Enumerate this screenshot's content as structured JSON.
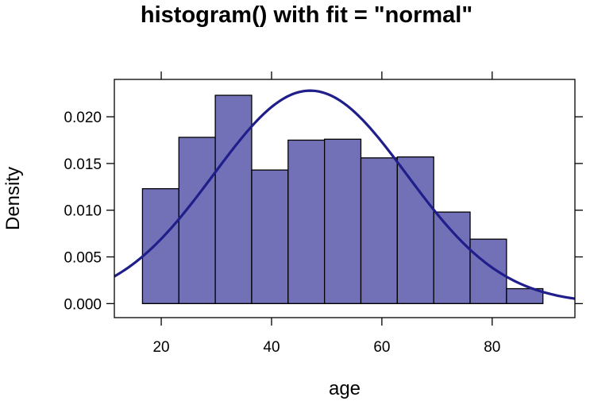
{
  "chart_data": {
    "type": "bar",
    "title": "histogram() with fit = \"normal\"",
    "xlabel": "age",
    "ylabel": "Density",
    "xlim": [
      11.5,
      95
    ],
    "ylim": [
      -0.0015,
      0.024
    ],
    "x_ticks": [
      20,
      40,
      60,
      80
    ],
    "x_tick_labels": [
      "20",
      "40",
      "60",
      "80"
    ],
    "y_ticks": [
      0.0,
      0.005,
      0.01,
      0.015,
      0.02
    ],
    "y_tick_labels": [
      "0.000",
      "0.005",
      "0.010",
      "0.015",
      "0.020"
    ],
    "bins": [
      {
        "start": 16.6,
        "end": 23.2,
        "density": 0.0123
      },
      {
        "start": 23.2,
        "end": 29.8,
        "density": 0.0178
      },
      {
        "start": 29.8,
        "end": 36.4,
        "density": 0.0223
      },
      {
        "start": 36.4,
        "end": 43.0,
        "density": 0.0143
      },
      {
        "start": 43.0,
        "end": 49.6,
        "density": 0.0175
      },
      {
        "start": 49.6,
        "end": 56.2,
        "density": 0.0176
      },
      {
        "start": 56.2,
        "end": 62.8,
        "density": 0.0156
      },
      {
        "start": 62.8,
        "end": 69.4,
        "density": 0.0157
      },
      {
        "start": 69.4,
        "end": 76.0,
        "density": 0.0098
      },
      {
        "start": 76.0,
        "end": 82.6,
        "density": 0.0069
      },
      {
        "start": 82.6,
        "end": 89.2,
        "density": 0.0016
      }
    ],
    "fit": {
      "type": "normal",
      "mean": 47.0,
      "sd": 17.5
    },
    "colors": {
      "bar_fill": "#7271b8",
      "bar_stroke": "#000000",
      "curve": "#1f1e8a"
    },
    "grid": false
  }
}
